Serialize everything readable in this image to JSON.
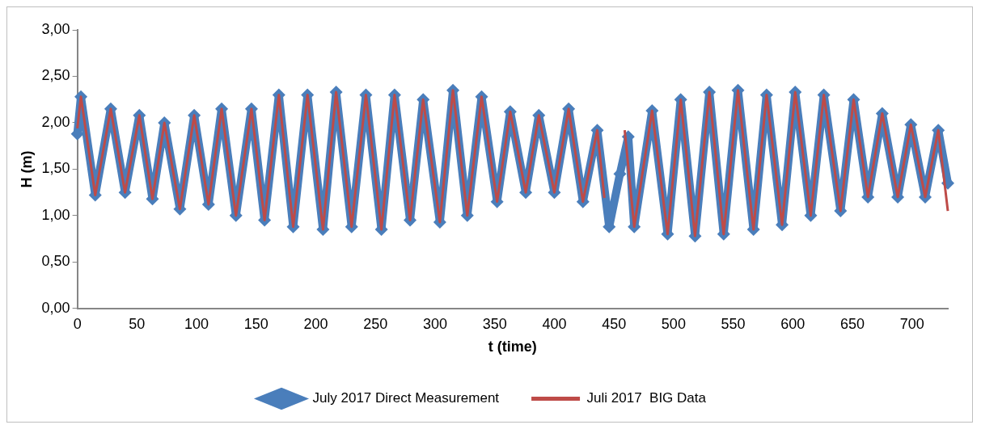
{
  "chart_data": {
    "type": "line",
    "xlabel": "t (time)",
    "ylabel": "H (m)",
    "xlim": [
      0,
      730
    ],
    "xticks": [
      0,
      50,
      100,
      150,
      200,
      250,
      300,
      350,
      400,
      450,
      500,
      550,
      600,
      650,
      700
    ],
    "ylim": [
      0,
      3
    ],
    "yticks": [
      {
        "value": 0,
        "label": "0,00"
      },
      {
        "value": 0.5,
        "label": "0,50"
      },
      {
        "value": 1,
        "label": "1,00"
      },
      {
        "value": 1.5,
        "label": "1,50"
      },
      {
        "value": 2,
        "label": "2,00"
      },
      {
        "value": 2.5,
        "label": "2,50"
      },
      {
        "value": 3,
        "label": "3,00"
      }
    ],
    "grid": false,
    "legend": "bottom",
    "series": [
      {
        "name": "July 2017 Direct Measurement",
        "color": "#4a7ebb",
        "marker": "diamond",
        "x": [
          0,
          3,
          15,
          28,
          40,
          52,
          63,
          73,
          86,
          98,
          110,
          121,
          133,
          146,
          157,
          169,
          181,
          193,
          206,
          217,
          230,
          242,
          255,
          266,
          279,
          290,
          304,
          315,
          327,
          339,
          352,
          363,
          376,
          387,
          400,
          412,
          424,
          436,
          446,
          455,
          462,
          467,
          482,
          495,
          506,
          518,
          530,
          542,
          554,
          567,
          578,
          591,
          602,
          615,
          626,
          640,
          651,
          663,
          675,
          688,
          699,
          711,
          722,
          730
        ],
        "values": [
          1.88,
          2.28,
          1.22,
          2.15,
          1.25,
          2.08,
          1.18,
          2.0,
          1.07,
          2.08,
          1.12,
          2.15,
          1.0,
          2.15,
          0.95,
          2.3,
          0.88,
          2.3,
          0.85,
          2.33,
          0.88,
          2.3,
          0.85,
          2.3,
          0.95,
          2.25,
          0.93,
          2.35,
          1.0,
          2.28,
          1.15,
          2.12,
          1.25,
          2.08,
          1.25,
          2.15,
          1.15,
          1.92,
          0.88,
          1.45,
          1.85,
          0.88,
          2.13,
          0.8,
          2.25,
          0.78,
          2.33,
          0.8,
          2.35,
          0.85,
          2.3,
          0.9,
          2.33,
          1.0,
          2.3,
          1.05,
          2.25,
          1.2,
          2.1,
          1.2,
          1.98,
          1.2,
          1.92,
          1.35
        ]
      },
      {
        "name": "Juli 2017  BIG Data",
        "color": "#be4b48",
        "marker": "none",
        "x": [
          0,
          3,
          15,
          28,
          40,
          52,
          63,
          73,
          86,
          98,
          110,
          121,
          133,
          146,
          157,
          169,
          181,
          193,
          206,
          217,
          230,
          242,
          255,
          266,
          279,
          290,
          304,
          315,
          327,
          339,
          352,
          363,
          376,
          387,
          400,
          412,
          424,
          436,
          442,
          450,
          459,
          467,
          482,
          495,
          506,
          518,
          530,
          542,
          554,
          567,
          578,
          591,
          602,
          615,
          626,
          640,
          651,
          663,
          675,
          688,
          699,
          711,
          722,
          730
        ],
        "values": [
          1.94,
          2.28,
          1.22,
          2.15,
          1.25,
          2.08,
          1.18,
          2.0,
          1.07,
          2.08,
          1.12,
          2.15,
          1.0,
          2.15,
          0.95,
          2.3,
          0.88,
          2.3,
          0.85,
          2.33,
          0.88,
          2.3,
          0.85,
          2.3,
          0.95,
          2.25,
          0.93,
          2.35,
          1.0,
          2.28,
          1.15,
          2.12,
          1.25,
          2.08,
          1.25,
          2.15,
          1.15,
          1.92,
          1.19,
          null,
          1.92,
          0.88,
          2.13,
          0.8,
          2.25,
          0.78,
          2.33,
          0.8,
          2.35,
          0.85,
          2.3,
          0.9,
          2.33,
          1.0,
          2.3,
          1.05,
          2.25,
          1.2,
          2.1,
          1.2,
          1.98,
          1.2,
          1.92,
          1.05
        ]
      }
    ]
  }
}
